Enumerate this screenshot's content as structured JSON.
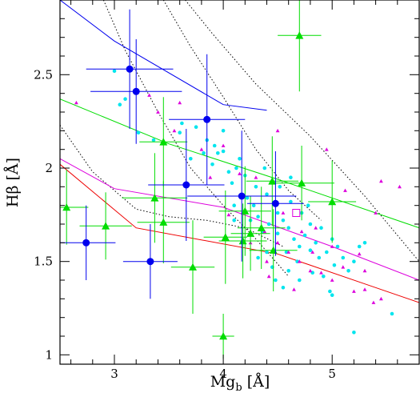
{
  "chart_data": {
    "type": "scatter",
    "xlabel": {
      "main": "Mg",
      "sub": "b",
      "unit": " [Å]"
    },
    "ylabel": {
      "main": "Hβ",
      "unit": " [Å]"
    },
    "xlim": [
      2.5,
      5.8
    ],
    "ylim": [
      0.95,
      2.9
    ],
    "x_ticks": [
      "3",
      "4",
      "5"
    ],
    "y_ticks": [
      "1",
      "1.5",
      "2",
      "2.5"
    ],
    "grid": false,
    "legend": "none",
    "colors": {
      "blue": "#0000ee",
      "green": "#00dd00",
      "cyan": "#00e5ee",
      "magenta": "#dd00dd",
      "red": "#ee0000",
      "dotted": "#000000"
    },
    "model_lines": [
      {
        "color": "blue",
        "x": [
          2.5,
          3.0,
          4.0,
          4.4
        ],
        "y": [
          2.9,
          2.68,
          2.34,
          2.31
        ]
      },
      {
        "color": "green",
        "x": [
          2.5,
          3.5,
          4.5,
          5.8
        ],
        "y": [
          2.37,
          2.13,
          1.94,
          1.68
        ]
      },
      {
        "color": "magenta",
        "x": [
          2.5,
          3.0,
          4.0,
          5.0,
          5.8
        ],
        "y": [
          2.05,
          1.89,
          1.79,
          1.58,
          1.4
        ]
      },
      {
        "color": "red",
        "x": [
          2.5,
          3.2,
          4.5,
          5.3,
          5.8
        ],
        "y": [
          2.02,
          1.68,
          1.54,
          1.38,
          1.28
        ]
      }
    ],
    "dotted_lines": [
      {
        "x": [
          2.5,
          2.8,
          3.2,
          3.5,
          3.85,
          4.2,
          4.55
        ],
        "y": [
          2.23,
          1.98,
          1.78,
          1.74,
          1.72,
          1.68,
          1.58
        ]
      },
      {
        "x": [
          2.9,
          3.1,
          3.4,
          3.7,
          4.0,
          4.3,
          4.6
        ],
        "y": [
          2.9,
          2.63,
          2.3,
          2.0,
          1.8,
          1.62,
          1.42
        ]
      },
      {
        "x": [
          3.45,
          3.7,
          4.0,
          4.3,
          4.6,
          4.9
        ],
        "y": [
          2.9,
          2.65,
          2.38,
          2.1,
          1.88,
          1.72
        ]
      },
      {
        "x": [
          3.65,
          3.9,
          4.3,
          4.8,
          5.3,
          5.8
        ],
        "y": [
          2.9,
          2.72,
          2.45,
          2.17,
          1.85,
          1.5
        ]
      }
    ],
    "blue_points": [
      {
        "x": 3.14,
        "y": 2.53,
        "xerr": 0.4,
        "yerr": 0.32
      },
      {
        "x": 3.2,
        "y": 2.41,
        "xerr": 0.42,
        "yerr": 0.28
      },
      {
        "x": 3.85,
        "y": 2.26,
        "xerr": 0.35,
        "yerr": 0.35
      },
      {
        "x": 3.66,
        "y": 1.91,
        "xerr": 0.35,
        "yerr": 0.3
      },
      {
        "x": 4.17,
        "y": 1.85,
        "xerr": 0.5,
        "yerr": 0.35
      },
      {
        "x": 4.48,
        "y": 1.81,
        "xerr": 0.26,
        "yerr": 0.28
      },
      {
        "x": 2.74,
        "y": 1.6,
        "xerr": 0.27,
        "yerr": 0.2
      },
      {
        "x": 3.33,
        "y": 1.5,
        "xerr": 0.25,
        "yerr": 0.2
      }
    ],
    "green_points": [
      {
        "x": 4.7,
        "y": 2.71,
        "xerr": 0.2,
        "yerr": 0.3
      },
      {
        "x": 3.45,
        "y": 2.14,
        "xerr": 0.22,
        "yerr": 0.24
      },
      {
        "x": 2.56,
        "y": 1.79,
        "xerr": 0.2,
        "yerr": 0.2
      },
      {
        "x": 2.92,
        "y": 1.69,
        "xerr": 0.24,
        "yerr": 0.18
      },
      {
        "x": 3.37,
        "y": 1.84,
        "xerr": 0.3,
        "yerr": 0.24
      },
      {
        "x": 3.45,
        "y": 1.71,
        "xerr": 0.24,
        "yerr": 0.22
      },
      {
        "x": 3.72,
        "y": 1.47,
        "xerr": 0.2,
        "yerr": 0.25
      },
      {
        "x": 4.02,
        "y": 1.63,
        "xerr": 0.2,
        "yerr": 0.25
      },
      {
        "x": 4.18,
        "y": 1.61,
        "xerr": 0.22,
        "yerr": 0.2
      },
      {
        "x": 4.25,
        "y": 1.65,
        "xerr": 0.18,
        "yerr": 0.2
      },
      {
        "x": 4.35,
        "y": 1.68,
        "xerr": 0.22,
        "yerr": 0.22
      },
      {
        "x": 4.2,
        "y": 1.77,
        "xerr": 0.24,
        "yerr": 0.24
      },
      {
        "x": 4.45,
        "y": 1.93,
        "xerr": 0.24,
        "yerr": 0.24
      },
      {
        "x": 4.72,
        "y": 1.92,
        "xerr": 0.3,
        "yerr": 0.2
      },
      {
        "x": 4.46,
        "y": 1.56,
        "xerr": 0.22,
        "yerr": 0.22
      },
      {
        "x": 5.0,
        "y": 1.82,
        "xerr": 0.22,
        "yerr": 0.22
      },
      {
        "x": 4.0,
        "y": 1.1,
        "xerr": 0.1,
        "yerr": 0.12
      }
    ],
    "cyan_points": [
      [
        3.0,
        2.52
      ],
      [
        3.05,
        2.34
      ],
      [
        3.1,
        2.37
      ],
      [
        3.22,
        2.19
      ],
      [
        3.36,
        2.15
      ],
      [
        3.6,
        2.19
      ],
      [
        3.7,
        2.05
      ],
      [
        3.75,
        2.22
      ],
      [
        3.85,
        2.15
      ],
      [
        3.92,
        2.12
      ],
      [
        3.95,
        2.08
      ],
      [
        3.9,
        2.02
      ],
      [
        4.0,
        2.09
      ],
      [
        4.05,
        1.98
      ],
      [
        4.12,
        2.0
      ],
      [
        4.2,
        1.96
      ],
      [
        4.3,
        1.9
      ],
      [
        4.08,
        1.92
      ],
      [
        4.22,
        1.84
      ],
      [
        4.1,
        1.8
      ],
      [
        4.32,
        1.74
      ],
      [
        4.25,
        1.72
      ],
      [
        4.4,
        1.86
      ],
      [
        4.5,
        1.76
      ],
      [
        4.42,
        1.7
      ],
      [
        4.36,
        1.66
      ],
      [
        4.5,
        1.65
      ],
      [
        4.55,
        1.72
      ],
      [
        4.6,
        1.68
      ],
      [
        4.65,
        1.62
      ],
      [
        4.7,
        1.58
      ],
      [
        4.75,
        1.64
      ],
      [
        4.8,
        1.56
      ],
      [
        4.85,
        1.6
      ],
      [
        4.88,
        1.52
      ],
      [
        4.95,
        1.55
      ],
      [
        5.0,
        1.62
      ],
      [
        5.02,
        1.48
      ],
      [
        5.1,
        1.52
      ],
      [
        5.05,
        1.58
      ],
      [
        5.15,
        1.45
      ],
      [
        5.2,
        1.5
      ],
      [
        4.6,
        1.45
      ],
      [
        4.7,
        1.4
      ],
      [
        4.55,
        1.36
      ],
      [
        4.48,
        1.4
      ],
      [
        4.82,
        1.44
      ],
      [
        4.92,
        1.42
      ],
      [
        4.62,
        1.82
      ],
      [
        4.72,
        1.76
      ],
      [
        4.8,
        1.7
      ],
      [
        4.9,
        1.68
      ],
      [
        4.78,
        1.8
      ],
      [
        4.52,
        1.9
      ],
      [
        4.62,
        1.95
      ],
      [
        4.15,
        2.05
      ],
      [
        4.0,
        2.2
      ],
      [
        3.82,
        2.08
      ],
      [
        4.38,
        2.0
      ],
      [
        4.28,
        1.8
      ],
      [
        4.45,
        1.47
      ],
      [
        4.32,
        1.52
      ],
      [
        5.3,
        1.6
      ],
      [
        5.25,
        1.58
      ],
      [
        4.98,
        1.34
      ],
      [
        5.0,
        1.32
      ],
      [
        5.2,
        1.12
      ],
      [
        5.55,
        1.22
      ],
      [
        4.4,
        1.55
      ],
      [
        4.68,
        1.5
      ],
      [
        4.58,
        1.55
      ],
      [
        3.62,
        2.24
      ],
      [
        4.1,
        1.72
      ]
    ],
    "magenta_points": [
      [
        2.65,
        2.35
      ],
      [
        3.32,
        2.39
      ],
      [
        3.4,
        2.3
      ],
      [
        3.55,
        2.2
      ],
      [
        3.8,
        2.1
      ],
      [
        4.0,
        2.12
      ],
      [
        3.88,
        1.95
      ],
      [
        4.15,
        1.97
      ],
      [
        4.3,
        1.95
      ],
      [
        4.25,
        1.6
      ],
      [
        4.4,
        1.5
      ],
      [
        4.42,
        1.42
      ],
      [
        4.5,
        1.6
      ],
      [
        4.6,
        1.55
      ],
      [
        4.7,
        1.5
      ],
      [
        4.8,
        1.45
      ],
      [
        4.9,
        1.44
      ],
      [
        5.0,
        1.4
      ],
      [
        5.1,
        1.47
      ],
      [
        5.2,
        1.34
      ],
      [
        5.3,
        1.35
      ],
      [
        5.38,
        1.28
      ],
      [
        5.45,
        1.3
      ],
      [
        4.95,
        2.1
      ],
      [
        5.12,
        1.88
      ],
      [
        5.4,
        1.76
      ],
      [
        5.45,
        1.93
      ],
      [
        5.62,
        1.9
      ],
      [
        4.55,
        1.76
      ],
      [
        4.85,
        1.68
      ],
      [
        4.72,
        1.66
      ],
      [
        5.25,
        1.54
      ],
      [
        4.38,
        1.66
      ],
      [
        4.05,
        1.75
      ],
      [
        4.5,
        2.2
      ],
      [
        4.65,
        1.35
      ],
      [
        5.3,
        1.45
      ],
      [
        4.82,
        1.55
      ],
      [
        5.0,
        1.58
      ],
      [
        3.6,
        2.35
      ]
    ],
    "magenta_square": {
      "x": 4.67,
      "y": 1.76
    }
  }
}
